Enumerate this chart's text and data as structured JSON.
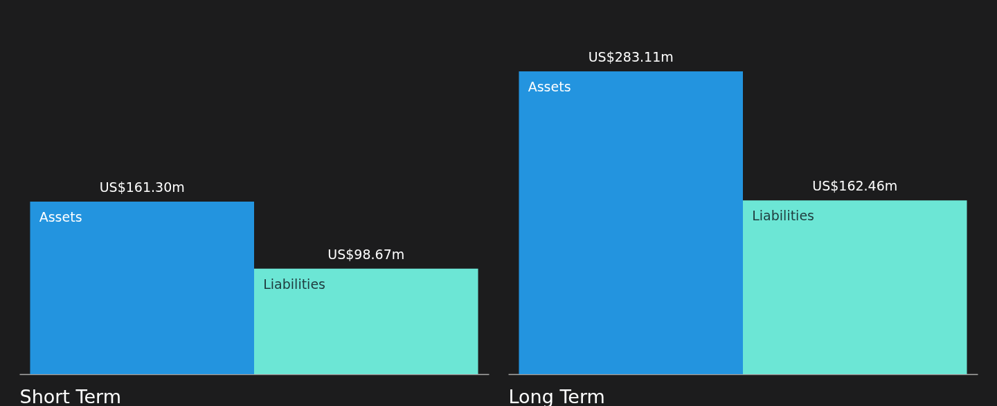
{
  "chart_data": [
    {
      "type": "bar",
      "xlabel": "Short Term",
      "grid": false,
      "legend": false,
      "categories": [
        null
      ],
      "series": [
        {
          "name": "Assets",
          "color": "#2394df",
          "values": [
            161300000
          ],
          "value_labels": [
            "US$161.30m"
          ]
        },
        {
          "name": "Liabilities",
          "color": "#6ce6d5",
          "values": [
            98670000
          ],
          "value_labels": [
            "US$98.67m"
          ]
        }
      ]
    },
    {
      "type": "bar",
      "xlabel": "Long Term",
      "grid": false,
      "legend": false,
      "categories": [
        null
      ],
      "series": [
        {
          "name": "Assets",
          "color": "#2394df",
          "values": [
            283110000
          ],
          "value_labels": [
            "US$283.11m"
          ]
        },
        {
          "name": "Liabilities",
          "color": "#6ce6d5",
          "values": [
            162460000
          ],
          "value_labels": [
            "US$162.46m"
          ]
        }
      ]
    }
  ]
}
